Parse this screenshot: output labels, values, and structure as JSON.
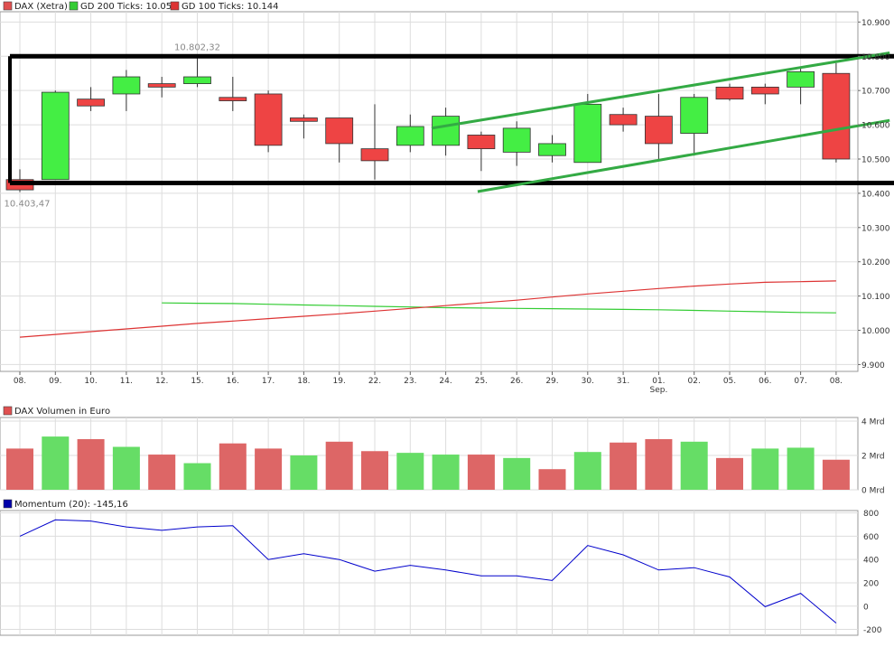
{
  "legend": {
    "main": [
      {
        "label": "DAX (Xetra)",
        "color": "#e05050"
      },
      {
        "label": "GD 200 Ticks: 10.051",
        "color": "#33cc33"
      },
      {
        "label": "GD 100 Ticks: 10.144",
        "color": "#dd3333"
      }
    ],
    "volume": [
      {
        "label": "DAX Volumen in Euro",
        "color": "#e05050"
      }
    ],
    "momentum": [
      {
        "label": "Momentum (20): -145,16",
        "color": "#0000aa"
      }
    ]
  },
  "colors": {
    "up": "#44ee44",
    "down": "#ee4444",
    "vol_up": "#66dd66",
    "vol_down": "#dd6666",
    "sma200": "#33cc33",
    "sma100": "#dd3333",
    "momentum": "#0000cc",
    "trendline": "#33aa44",
    "grid": "#dddddd"
  },
  "annotations": {
    "high_label": "10.802,32",
    "low_label": "10.403,47",
    "month_label": "Sep."
  },
  "chart_data": [
    {
      "type": "candlestick",
      "name": "DAX (Xetra)",
      "categories": [
        "08.",
        "09.",
        "10.",
        "11.",
        "12.",
        "15.",
        "16.",
        "17.",
        "18.",
        "19.",
        "22.",
        "23.",
        "24.",
        "25.",
        "26.",
        "29.",
        "30.",
        "31.",
        "01.",
        "02.",
        "05.",
        "06.",
        "07.",
        "08."
      ],
      "open": [
        10440,
        10440,
        10675,
        10690,
        10720,
        10720,
        10680,
        10690,
        10620,
        10620,
        10530,
        10540,
        10540,
        10570,
        10520,
        10510,
        10490,
        10630,
        10625,
        10575,
        10710,
        10710,
        10710,
        10750
      ],
      "close": [
        10410,
        10695,
        10655,
        10740,
        10710,
        10740,
        10670,
        10540,
        10610,
        10545,
        10495,
        10595,
        10625,
        10530,
        10590,
        10545,
        10660,
        10600,
        10545,
        10680,
        10675,
        10690,
        10755,
        10500
      ],
      "high": [
        10470,
        10700,
        10710,
        10760,
        10740,
        10802.32,
        10740,
        10700,
        10630,
        10620,
        10660,
        10630,
        10650,
        10580,
        10610,
        10570,
        10690,
        10650,
        10690,
        10690,
        10720,
        10720,
        10770,
        10780
      ],
      "low": [
        10403.47,
        10440,
        10640,
        10640,
        10680,
        10710,
        10640,
        10520,
        10560,
        10490,
        10440,
        10520,
        10510,
        10465,
        10480,
        10490,
        10490,
        10580,
        10500,
        10510,
        10670,
        10660,
        10660,
        10490
      ],
      "sma200": {
        "name": "GD 200 Ticks: 10.051",
        "start_index": 4,
        "values": [
          10080,
          10079,
          10078,
          10076,
          10074,
          10072,
          10070,
          10068,
          10066,
          10065,
          10064,
          10063,
          10062,
          10061,
          10060,
          10058,
          10056,
          10054,
          10052,
          10051
        ]
      },
      "sma100": {
        "name": "GD 100 Ticks: 10.144",
        "start_index": 0,
        "values": [
          9980,
          9988,
          9996,
          10004,
          10012,
          10020,
          10027,
          10034,
          10041,
          10048,
          10056,
          10064,
          10072,
          10080,
          10088,
          10097,
          10106,
          10114,
          10122,
          10129,
          10135,
          10140,
          10142,
          10144
        ]
      },
      "ylim": [
        9880,
        10930
      ],
      "yticks": [
        9900,
        10000,
        10100,
        10200,
        10300,
        10400,
        10500,
        10600,
        10700,
        10800,
        10900
      ],
      "ytick_labels": [
        "9.900",
        "10.000",
        "10.100",
        "10.200",
        "10.300",
        "10.400",
        "10.500",
        "10.600",
        "10.700",
        "10.800",
        "10.900"
      ],
      "channel_box": {
        "top": 10800,
        "bottom": 10430
      },
      "trendlines": [
        {
          "from": {
            "index": 11.6,
            "value": 10590
          },
          "to": {
            "index": 24,
            "value": 10802
          }
        },
        {
          "from": {
            "index": 12.9,
            "value": 10405
          },
          "to": {
            "index": 24,
            "value": 10605
          }
        }
      ]
    },
    {
      "type": "bar",
      "name": "DAX Volumen in Euro",
      "values": [
        2.4,
        3.1,
        2.95,
        2.5,
        2.05,
        1.55,
        2.7,
        2.4,
        2.0,
        2.8,
        2.25,
        2.15,
        2.05,
        2.05,
        1.85,
        1.2,
        2.2,
        2.75,
        2.95,
        2.8,
        1.85,
        2.4,
        2.45,
        1.75
      ],
      "direction": [
        "down",
        "up",
        "down",
        "up",
        "down",
        "up",
        "down",
        "down",
        "up",
        "down",
        "down",
        "up",
        "up",
        "down",
        "up",
        "down",
        "up",
        "down",
        "down",
        "up",
        "down",
        "up",
        "up",
        "down"
      ],
      "ylim": [
        0,
        4
      ],
      "yticks": [
        0,
        2,
        4
      ],
      "ytick_labels": [
        "0 Mrd",
        "2 Mrd",
        "4 Mrd"
      ]
    },
    {
      "type": "line",
      "name": "Momentum (20): -145,16",
      "values": [
        600,
        740,
        730,
        680,
        650,
        680,
        690,
        400,
        450,
        400,
        300,
        350,
        310,
        260,
        260,
        220,
        520,
        440,
        310,
        330,
        250,
        -5,
        110,
        -145.16
      ],
      "ylim": [
        -250,
        820
      ],
      "yticks": [
        -200,
        0,
        200,
        400,
        600,
        800
      ],
      "ytick_labels": [
        "-200",
        "0",
        "200",
        "400",
        "600",
        "800"
      ]
    }
  ]
}
